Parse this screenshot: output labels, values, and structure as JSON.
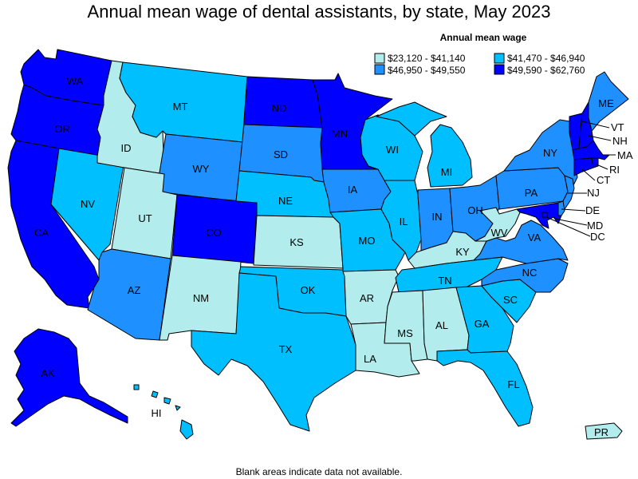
{
  "title": "Annual mean wage of dental assistants, by state, May 2023",
  "legend": {
    "title": "Annual mean wage",
    "ranges": [
      {
        "label": "$23,120 - $41,140",
        "color": "#b2ecec"
      },
      {
        "label": "$41,470 - $46,940",
        "color": "#00bfff"
      },
      {
        "label": "$46,950 - $49,550",
        "color": "#1e90ff"
      },
      {
        "label": "$49,590 - $62,760",
        "color": "#0000ff"
      }
    ]
  },
  "footnote": "Blank areas indicate data not available.",
  "states": [
    {
      "abbr": "WA",
      "bin": 3
    },
    {
      "abbr": "OR",
      "bin": 3
    },
    {
      "abbr": "CA",
      "bin": 3
    },
    {
      "abbr": "NV",
      "bin": 1
    },
    {
      "abbr": "ID",
      "bin": 0
    },
    {
      "abbr": "MT",
      "bin": 1
    },
    {
      "abbr": "WY",
      "bin": 2
    },
    {
      "abbr": "UT",
      "bin": 0
    },
    {
      "abbr": "AZ",
      "bin": 2
    },
    {
      "abbr": "CO",
      "bin": 3
    },
    {
      "abbr": "NM",
      "bin": 0
    },
    {
      "abbr": "ND",
      "bin": 3
    },
    {
      "abbr": "SD",
      "bin": 2
    },
    {
      "abbr": "NE",
      "bin": 1
    },
    {
      "abbr": "KS",
      "bin": 0
    },
    {
      "abbr": "OK",
      "bin": 1
    },
    {
      "abbr": "TX",
      "bin": 1
    },
    {
      "abbr": "MN",
      "bin": 3
    },
    {
      "abbr": "IA",
      "bin": 2
    },
    {
      "abbr": "MO",
      "bin": 1
    },
    {
      "abbr": "AR",
      "bin": 0
    },
    {
      "abbr": "LA",
      "bin": 0
    },
    {
      "abbr": "WI",
      "bin": 1
    },
    {
      "abbr": "IL",
      "bin": 1
    },
    {
      "abbr": "MI",
      "bin": 1
    },
    {
      "abbr": "IN",
      "bin": 2
    },
    {
      "abbr": "OH",
      "bin": 2
    },
    {
      "abbr": "KY",
      "bin": 0
    },
    {
      "abbr": "TN",
      "bin": 1
    },
    {
      "abbr": "MS",
      "bin": 0
    },
    {
      "abbr": "AL",
      "bin": 0
    },
    {
      "abbr": "GA",
      "bin": 1
    },
    {
      "abbr": "FL",
      "bin": 1
    },
    {
      "abbr": "SC",
      "bin": 1
    },
    {
      "abbr": "NC",
      "bin": 2
    },
    {
      "abbr": "VA",
      "bin": 2
    },
    {
      "abbr": "WV",
      "bin": 0
    },
    {
      "abbr": "PA",
      "bin": 2
    },
    {
      "abbr": "NY",
      "bin": 2
    },
    {
      "abbr": "ME",
      "bin": 2
    },
    {
      "abbr": "VT",
      "bin": 3
    },
    {
      "abbr": "NH",
      "bin": 3
    },
    {
      "abbr": "MA",
      "bin": 3
    },
    {
      "abbr": "RI",
      "bin": 3
    },
    {
      "abbr": "CT",
      "bin": 3
    },
    {
      "abbr": "NJ",
      "bin": 2
    },
    {
      "abbr": "DE",
      "bin": 2
    },
    {
      "abbr": "MD",
      "bin": 3
    },
    {
      "abbr": "DC",
      "bin": 3
    },
    {
      "abbr": "AK",
      "bin": 3
    },
    {
      "abbr": "HI",
      "bin": 1
    },
    {
      "abbr": "PR",
      "bin": 0
    }
  ]
}
